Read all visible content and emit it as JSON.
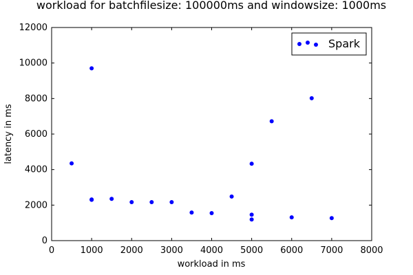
{
  "chart_data": {
    "type": "scatter",
    "title": "workload for batchfilesize: 100000ms and windowsize: 1000ms",
    "xlabel": "workload in ms",
    "ylabel": "latency in ms",
    "xlim": [
      0,
      8000
    ],
    "ylim": [
      0,
      12000
    ],
    "xticks": [
      "0",
      "1000",
      "2000",
      "3000",
      "4000",
      "5000",
      "6000",
      "7000",
      "8000"
    ],
    "yticks": [
      "0",
      "2000",
      "4000",
      "6000",
      "8000",
      "10000",
      "12000"
    ],
    "grid": false,
    "legend_position": "top-right",
    "series": [
      {
        "name": "Spark",
        "color": "#0000ff",
        "x": [
          500,
          1000,
          1000,
          1000,
          1500,
          2000,
          2500,
          3000,
          3500,
          4000,
          4500,
          5000,
          5000,
          5000,
          5500,
          6000,
          6500,
          7000
        ],
        "y": [
          4350,
          9700,
          2320,
          2300,
          2350,
          2170,
          2170,
          2170,
          1580,
          1550,
          2480,
          4330,
          1460,
          1190,
          6720,
          1310,
          8020,
          1270
        ]
      }
    ]
  }
}
